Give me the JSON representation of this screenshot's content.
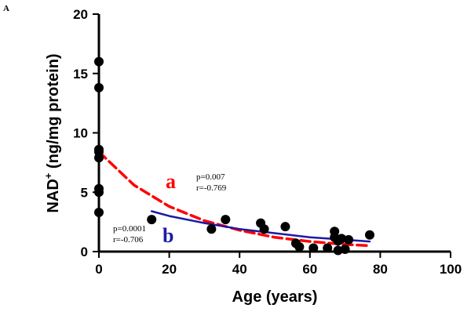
{
  "panel_label": "A",
  "colors": {
    "curve_a": "#ff0000",
    "curve_b": "#1a1aa6",
    "points": "#000000"
  },
  "annotations": {
    "a": {
      "letter": "a",
      "p": "p=0.007",
      "r": "r=-0.769"
    },
    "b": {
      "letter": "b",
      "p": "p=0.0001",
      "r": "r=-0.706"
    }
  },
  "chart_data": {
    "type": "scatter",
    "title": "",
    "xlabel": "Age (years)",
    "ylabel": "NAD+ (ng/mg protein)",
    "ylabel_main": "NAD",
    "ylabel_sup": "+",
    "ylabel_rest": " (ng/mg protein)",
    "xlim": [
      0,
      100
    ],
    "ylim": [
      0,
      20
    ],
    "x_ticks": [
      0,
      20,
      40,
      60,
      80,
      100
    ],
    "y_ticks": [
      0,
      5,
      10,
      15,
      20
    ],
    "x_tick_labels": [
      "0",
      "20",
      "40",
      "60",
      "80",
      "100"
    ],
    "y_tick_labels": [
      "0",
      "5",
      "10",
      "15",
      "20"
    ],
    "grid": false,
    "legend": false,
    "points": [
      {
        "x": 0,
        "y": 16.0
      },
      {
        "x": 0,
        "y": 13.8
      },
      {
        "x": 0,
        "y": 8.6
      },
      {
        "x": 0,
        "y": 8.4
      },
      {
        "x": 0,
        "y": 7.9
      },
      {
        "x": 0,
        "y": 5.3
      },
      {
        "x": 0,
        "y": 5.0
      },
      {
        "x": 0,
        "y": 3.3
      },
      {
        "x": 15,
        "y": 2.7
      },
      {
        "x": 32,
        "y": 1.9
      },
      {
        "x": 36,
        "y": 2.7
      },
      {
        "x": 46,
        "y": 2.4
      },
      {
        "x": 47,
        "y": 1.9
      },
      {
        "x": 53,
        "y": 2.1
      },
      {
        "x": 56,
        "y": 0.7
      },
      {
        "x": 57,
        "y": 0.4
      },
      {
        "x": 61,
        "y": 0.3
      },
      {
        "x": 65,
        "y": 0.3
      },
      {
        "x": 67,
        "y": 1.7
      },
      {
        "x": 67,
        "y": 1.2
      },
      {
        "x": 68,
        "y": 0.1
      },
      {
        "x": 68,
        "y": 0.9
      },
      {
        "x": 69,
        "y": 1.1
      },
      {
        "x": 70,
        "y": 0.2
      },
      {
        "x": 71,
        "y": 1.0
      },
      {
        "x": 77,
        "y": 1.4
      }
    ],
    "series": [
      {
        "name": "a",
        "style": "dashed",
        "x": [
          0,
          10,
          20,
          30,
          40,
          50,
          60,
          70,
          77
        ],
        "y": [
          8.4,
          5.6,
          3.8,
          2.6,
          1.8,
          1.2,
          0.85,
          0.6,
          0.5
        ]
      },
      {
        "name": "b",
        "style": "solid",
        "x": [
          15,
          20,
          30,
          40,
          50,
          60,
          70,
          77
        ],
        "y": [
          3.4,
          3.0,
          2.4,
          1.9,
          1.55,
          1.2,
          1.0,
          0.85
        ]
      }
    ]
  }
}
